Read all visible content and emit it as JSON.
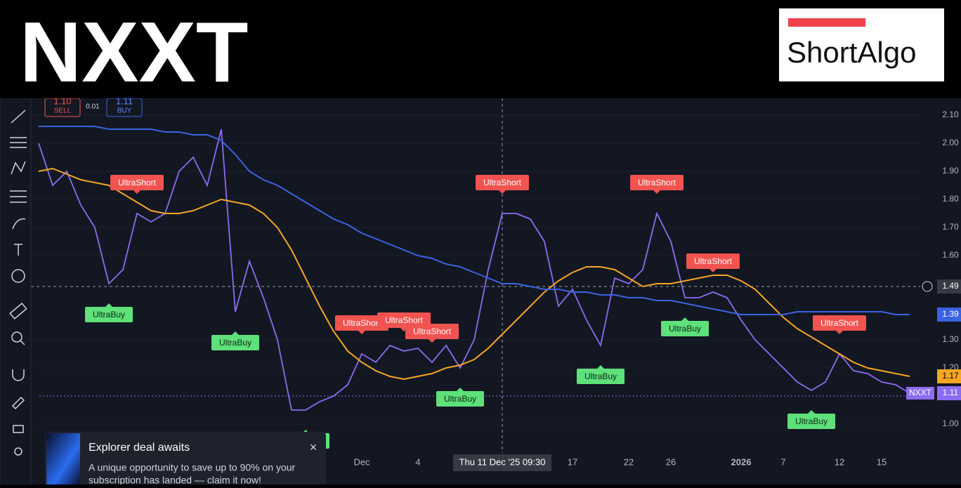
{
  "header": {
    "ticker": "NXXT",
    "logo": "ShortAlgo"
  },
  "trade_panel": {
    "sell_price": "1.10",
    "sell": "SELL",
    "spread": "0.01",
    "buy_price": "1.11",
    "buy": "BUY"
  },
  "chart_data": {
    "type": "line",
    "categories": [
      null,
      null,
      null,
      null,
      null,
      null,
      null,
      null,
      null,
      null,
      null,
      null,
      null,
      null,
      null,
      null,
      null,
      null,
      null,
      null,
      null,
      null,
      null,
      "Dec",
      null,
      null,
      null,
      "4",
      null,
      null,
      null,
      null,
      null,
      null,
      null,
      null,
      null,
      null,
      "17",
      null,
      null,
      null,
      "22",
      null,
      null,
      "26",
      null,
      null,
      null,
      null,
      "2026",
      null,
      null,
      "7",
      null,
      null,
      null,
      "12",
      null,
      null,
      "15",
      null,
      null
    ],
    "series": [
      {
        "name": "NXXT",
        "color": "#8b6cf0",
        "values": [
          2.0,
          1.85,
          1.9,
          1.78,
          1.7,
          1.5,
          1.55,
          1.75,
          1.72,
          1.75,
          1.9,
          1.95,
          1.85,
          2.05,
          1.4,
          1.58,
          1.45,
          1.3,
          1.05,
          1.05,
          1.08,
          1.1,
          1.14,
          1.25,
          1.22,
          1.28,
          1.26,
          1.27,
          1.22,
          1.28,
          1.2,
          1.3,
          1.55,
          1.75,
          1.75,
          1.73,
          1.65,
          1.42,
          1.48,
          1.37,
          1.28,
          1.52,
          1.5,
          1.55,
          1.75,
          1.65,
          1.45,
          1.45,
          1.47,
          1.45,
          1.37,
          1.3,
          1.25,
          1.2,
          1.15,
          1.12,
          1.15,
          1.25,
          1.19,
          1.18,
          1.15,
          1.14,
          1.11
        ]
      },
      {
        "color": "#f5a623",
        "values": [
          1.9,
          1.91,
          1.89,
          1.87,
          1.86,
          1.85,
          1.82,
          1.79,
          1.76,
          1.75,
          1.75,
          1.76,
          1.78,
          1.8,
          1.79,
          1.78,
          1.75,
          1.7,
          1.62,
          1.52,
          1.42,
          1.33,
          1.26,
          1.22,
          1.19,
          1.17,
          1.16,
          1.17,
          1.18,
          1.2,
          1.21,
          1.23,
          1.27,
          1.32,
          1.37,
          1.42,
          1.47,
          1.51,
          1.54,
          1.56,
          1.56,
          1.55,
          1.52,
          1.49,
          1.5,
          1.5,
          1.51,
          1.52,
          1.53,
          1.53,
          1.51,
          1.48,
          1.43,
          1.38,
          1.34,
          1.31,
          1.28,
          1.25,
          1.22,
          1.2,
          1.19,
          1.18,
          1.17
        ]
      },
      {
        "color": "#3a63e0",
        "values": [
          2.06,
          2.06,
          2.06,
          2.06,
          2.06,
          2.05,
          2.05,
          2.05,
          2.05,
          2.04,
          2.04,
          2.03,
          2.03,
          2.01,
          1.96,
          1.9,
          1.87,
          1.85,
          1.82,
          1.79,
          1.76,
          1.73,
          1.71,
          1.68,
          1.66,
          1.64,
          1.62,
          1.6,
          1.59,
          1.57,
          1.56,
          1.54,
          1.52,
          1.5,
          1.5,
          1.49,
          1.48,
          1.48,
          1.47,
          1.47,
          1.46,
          1.46,
          1.45,
          1.45,
          1.44,
          1.44,
          1.43,
          1.42,
          1.41,
          1.4,
          1.39,
          1.39,
          1.39,
          1.39,
          1.4,
          1.4,
          1.4,
          1.4,
          1.4,
          1.4,
          1.4,
          1.39,
          1.39
        ]
      }
    ],
    "ylim": [
      0.96,
      2.16
    ],
    "yticks": [
      {
        "value": 1.0,
        "label": "1.00"
      },
      {
        "value": 1.2,
        "label": "1.20"
      },
      {
        "value": 1.3,
        "label": "1.30"
      },
      {
        "value": 1.6,
        "label": "1.60"
      },
      {
        "value": 1.7,
        "label": "1.70"
      },
      {
        "value": 1.8,
        "label": "1.80"
      },
      {
        "value": 1.9,
        "label": "1.90"
      },
      {
        "value": 2.0,
        "label": "2.00"
      },
      {
        "value": 2.1,
        "label": "2.10"
      }
    ],
    "signals": [
      {
        "label": "UltraShort",
        "index": 7
      },
      {
        "label": "UltraShort",
        "index": 23
      },
      {
        "label": "UltraShort",
        "index": 26
      },
      {
        "label": "UltraShort",
        "index": 28
      },
      {
        "label": "UltraShort",
        "index": 33
      },
      {
        "label": "UltraShort",
        "index": 44
      },
      {
        "label": "UltraShort",
        "index": 48
      },
      {
        "label": "UltraShort",
        "index": 57
      },
      {
        "label": "UltraBuy",
        "index": 5
      },
      {
        "label": "UltraBuy",
        "index": 14
      },
      {
        "label": "UltraBuy",
        "index": 19
      },
      {
        "label": "UltraBuy",
        "index": 30
      },
      {
        "label": "UltraBuy",
        "index": 40
      },
      {
        "label": "UltraBuy",
        "index": 46
      },
      {
        "label": "UltraBuy",
        "index": 55
      }
    ],
    "crosshair": {
      "index": 33,
      "value": 1.49,
      "value_label": "1.49",
      "x_label": "Thu 11 Dec '25   09:30"
    }
  },
  "notification": {
    "title": "Explorer deal awaits",
    "body": [
      "A unique opportunity to save up to 90% on your",
      "subscription has landed — claim it now!"
    ]
  }
}
